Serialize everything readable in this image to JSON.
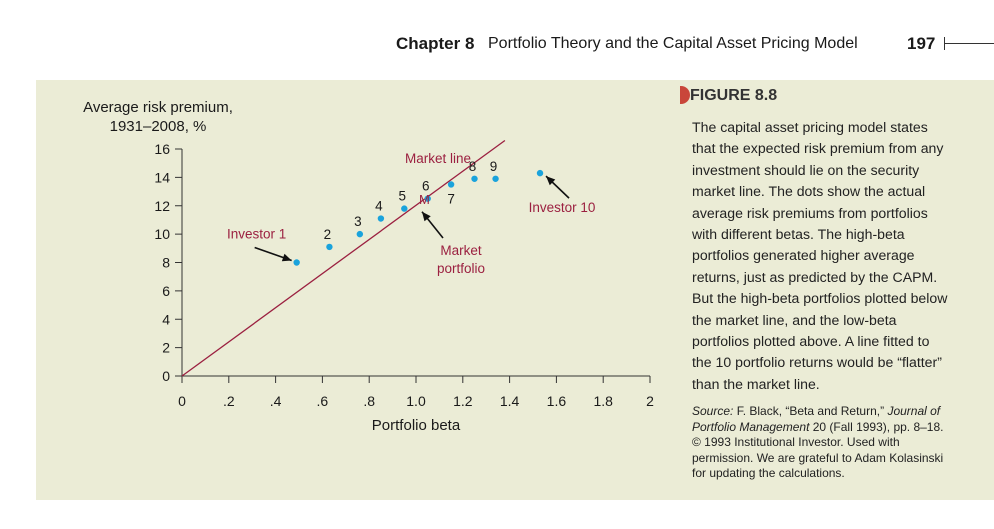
{
  "header": {
    "chapter_label": "Chapter 8",
    "chapter_title": "Portfolio Theory and the Capital Asset Pricing Model",
    "page_number": "197"
  },
  "figure": {
    "label": "FIGURE 8.8",
    "caption": "The capital asset pricing model states that the expected risk premium from any investment should lie on the security market line. The dots show the actual average risk premiums from portfolios with different betas. The high-beta portfolios generated higher average returns, just as predicted by the CAPM. But the high-beta portfolios plotted below the market line, and the low-beta portfolios plotted above. A line fitted to the 10 portfolio returns would be “flatter” than the market line.",
    "source_prefix": "Source:",
    "source_author": " F. Black, “Beta and Return,” ",
    "source_journal": "Journal of Portfolio Management",
    "source_rest": " 20 (Fall 1993), pp. 8–18. © 1993 Institutional Investor. Used with permission. We are grateful to Adam Kolasinski for updating the calculations."
  },
  "chart_data": {
    "type": "scatter",
    "ylabel_line1": "Average risk premium,",
    "ylabel_line2": "1931–2008, %",
    "xlabel": "Portfolio beta",
    "xlim": [
      0,
      2
    ],
    "ylim": [
      0,
      16
    ],
    "x_ticks": [
      "0",
      ".2",
      ".4",
      ".6",
      ".8",
      "1.0",
      "1.2",
      "1.4",
      "1.6",
      "1.8",
      "2"
    ],
    "y_ticks": [
      "0",
      "2",
      "4",
      "6",
      "8",
      "10",
      "12",
      "14",
      "16"
    ],
    "market_line": {
      "label": "Market line",
      "from": [
        0,
        0
      ],
      "to": [
        1.38,
        16.6
      ]
    },
    "market_point": {
      "label": "M",
      "x": 1.0,
      "y": 12.0,
      "annotation_line1": "Market",
      "annotation_line2": "portfolio"
    },
    "points": [
      {
        "label": "Investor 1",
        "x": 0.49,
        "y": 8.0
      },
      {
        "label": "2",
        "x": 0.63,
        "y": 9.1
      },
      {
        "label": "3",
        "x": 0.76,
        "y": 10.0
      },
      {
        "label": "4",
        "x": 0.85,
        "y": 11.1
      },
      {
        "label": "5",
        "x": 0.95,
        "y": 11.8
      },
      {
        "label": "6",
        "x": 1.05,
        "y": 12.5
      },
      {
        "label": "7",
        "x": 1.15,
        "y": 13.5
      },
      {
        "label": "8",
        "x": 1.25,
        "y": 13.9
      },
      {
        "label": "9",
        "x": 1.34,
        "y": 13.9
      },
      {
        "label": "Investor 10",
        "x": 1.53,
        "y": 14.3
      }
    ],
    "colors": {
      "dots": "#1aa3dc",
      "line": "#9b2040",
      "axis": "#333333",
      "text": "#1a1a1a",
      "panel": "#ebecd6"
    }
  }
}
